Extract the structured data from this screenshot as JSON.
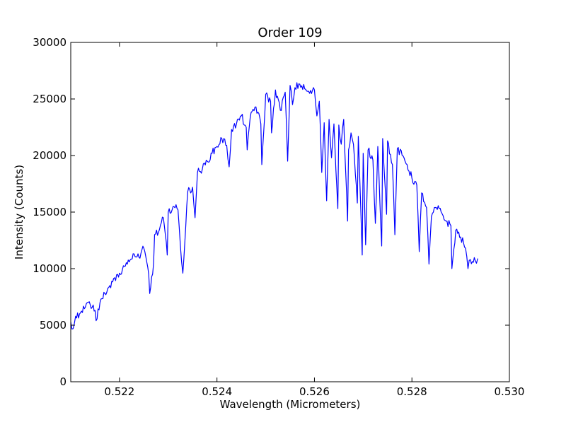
{
  "chart_data": {
    "type": "line",
    "title": "Order 109",
    "xlabel": "Wavelength (Micrometers)",
    "ylabel": "Intensity (Counts)",
    "xlim": [
      0.521,
      0.53
    ],
    "ylim": [
      0,
      30000
    ],
    "grid": false,
    "legend": "none",
    "x_ticks": [
      0.522,
      0.524,
      0.526,
      0.528,
      0.53
    ],
    "x_tick_labels": [
      "0.522",
      "0.524",
      "0.526",
      "0.528",
      "0.530"
    ],
    "y_ticks": [
      0,
      5000,
      10000,
      15000,
      20000,
      25000,
      30000
    ],
    "y_tick_labels": [
      "0",
      "5000",
      "10000",
      "15000",
      "20000",
      "25000",
      "30000"
    ],
    "series": [
      {
        "color": "#0000ff",
        "x": [
          0.521,
          0.52105,
          0.5211,
          0.5212,
          0.5213,
          0.5214,
          0.5215,
          0.52152,
          0.5216,
          0.5217,
          0.5218,
          0.5219,
          0.522,
          0.5221,
          0.5222,
          0.5223,
          0.5224,
          0.5225,
          0.5226,
          0.52262,
          0.5227,
          0.52272,
          0.5228,
          0.5229,
          0.52298,
          0.523,
          0.5231,
          0.5232,
          0.52325,
          0.5233,
          0.5234,
          0.5235,
          0.52355,
          0.5236,
          0.5237,
          0.5238,
          0.5239,
          0.524,
          0.5241,
          0.5242,
          0.52425,
          0.5243,
          0.5244,
          0.5245,
          0.5246,
          0.52462,
          0.5247,
          0.5248,
          0.5249,
          0.52492,
          0.525,
          0.5251,
          0.52512,
          0.5252,
          0.5253,
          0.5254,
          0.52545,
          0.5255,
          0.52555,
          0.5256,
          0.5257,
          0.5258,
          0.5259,
          0.526,
          0.52605,
          0.5261,
          0.52615,
          0.5262,
          0.52625,
          0.5263,
          0.52635,
          0.5264,
          0.52648,
          0.5265,
          0.52655,
          0.5266,
          0.52668,
          0.5267,
          0.52675,
          0.5268,
          0.52688,
          0.5269,
          0.52698,
          0.527,
          0.52705,
          0.5271,
          0.5272,
          0.52725,
          0.5273,
          0.52738,
          0.5274,
          0.52748,
          0.5275,
          0.5276,
          0.52765,
          0.5277,
          0.5278,
          0.5279,
          0.528,
          0.5281,
          0.52815,
          0.5282,
          0.5283,
          0.52835,
          0.5284,
          0.5285,
          0.5286,
          0.5287,
          0.5288,
          0.52882,
          0.5289,
          0.529,
          0.5291,
          0.52915,
          0.5292,
          0.5293,
          0.52935
        ],
        "y": [
          5300,
          4700,
          5800,
          6100,
          6600,
          6800,
          6300,
          5400,
          7000,
          7800,
          8500,
          9200,
          9600,
          10200,
          10600,
          11300,
          11000,
          11800,
          9500,
          7800,
          10500,
          13000,
          13200,
          14500,
          11200,
          15000,
          15500,
          15200,
          12000,
          9600,
          16800,
          17200,
          14500,
          18500,
          18800,
          19500,
          20200,
          20800,
          21500,
          20900,
          19000,
          22300,
          22800,
          23500,
          22500,
          20500,
          23800,
          24300,
          22800,
          19200,
          25400,
          24800,
          22000,
          25800,
          24000,
          25600,
          19500,
          26200,
          24500,
          26000,
          26300,
          25900,
          25500,
          25800,
          23500,
          24800,
          18500,
          22900,
          16000,
          23200,
          19800,
          22800,
          15300,
          22700,
          21000,
          23200,
          14200,
          20500,
          22000,
          21000,
          15800,
          21700,
          11200,
          20200,
          12100,
          20500,
          19600,
          14000,
          20800,
          12000,
          21500,
          14800,
          21300,
          19200,
          13000,
          20600,
          20000,
          19200,
          18000,
          17400,
          11500,
          16700,
          15400,
          10400,
          14600,
          15400,
          15000,
          14200,
          13800,
          10000,
          13400,
          12800,
          11800,
          10000,
          10800,
          10700,
          10900
        ]
      }
    ]
  }
}
